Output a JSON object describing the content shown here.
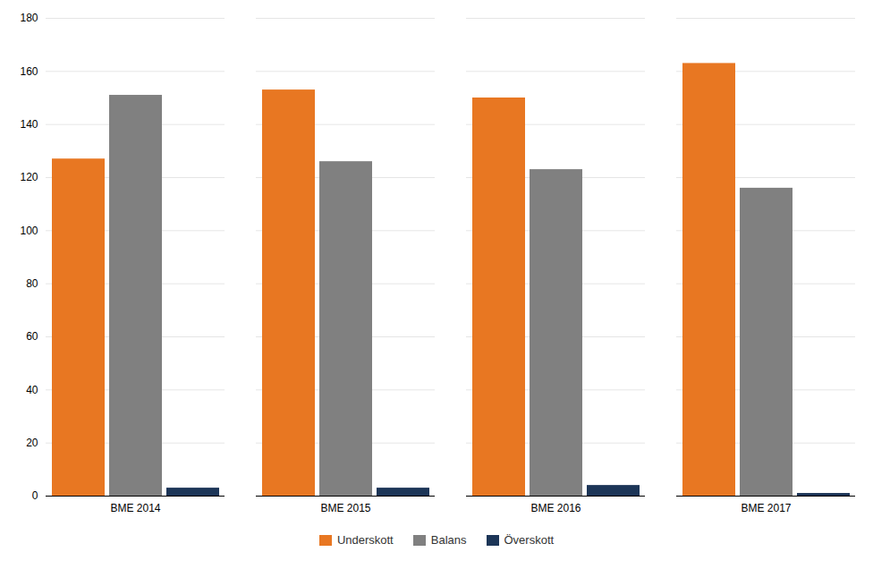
{
  "chart_data": {
    "type": "bar",
    "categories": [
      "BME 2014",
      "BME 2015",
      "BME 2016",
      "BME 2017"
    ],
    "series": [
      {
        "name": "Underskott",
        "color": "#E87722",
        "values": [
          127,
          153,
          150,
          163
        ]
      },
      {
        "name": "Balans",
        "color": "#808080",
        "values": [
          151,
          126,
          123,
          116
        ]
      },
      {
        "name": "Överskott",
        "color": "#1C3557",
        "values": [
          3,
          3,
          4,
          1
        ]
      }
    ],
    "ylim": [
      0,
      180
    ],
    "yticks": [
      0,
      20,
      40,
      60,
      80,
      100,
      120,
      140,
      160,
      180
    ],
    "grid": true,
    "legend": "bottom"
  }
}
